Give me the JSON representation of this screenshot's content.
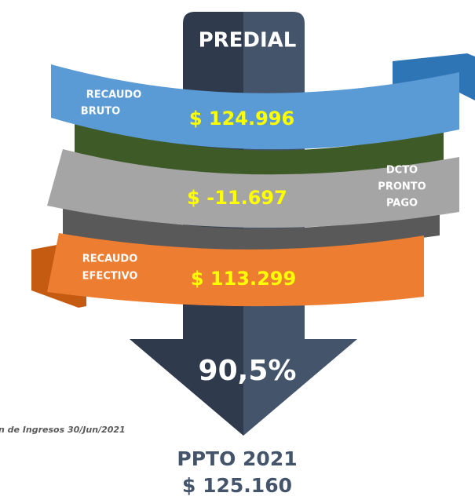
{
  "header": {
    "title": "PREDIAL"
  },
  "ribbons": [
    {
      "label_lines": [
        "RECAUDO",
        "BRUTO"
      ],
      "value": "$ 124.996"
    },
    {
      "label_lines": [
        "DCTO",
        "PRONTO",
        "PAGO"
      ],
      "value": "$ -11.697"
    },
    {
      "label_lines": [
        "RECAUDO",
        "EFECTIVO"
      ],
      "value": "$ 113.299"
    }
  ],
  "percentage": "90,5%",
  "footnote": "n de Ingresos 30/Jun/2021",
  "budget": {
    "lines": [
      "PPTO 2021",
      "$ 125.160"
    ]
  }
}
